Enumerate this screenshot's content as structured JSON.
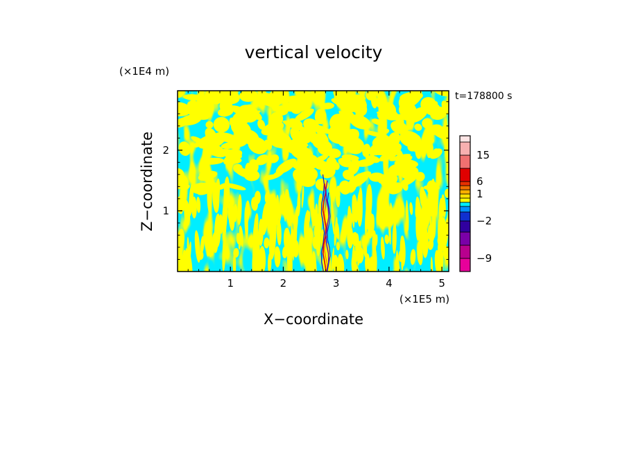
{
  "chart_data": {
    "type": "heatmap",
    "title": "vertical velocity",
    "xlabel": "X−coordinate",
    "ylabel": "Z−coordinate",
    "x_unit": "(×1E5 m)",
    "y_unit": "(×1E4 m)",
    "time_label": "t=178800 s",
    "xlim": [
      0,
      5.13
    ],
    "ylim": [
      0,
      2.98
    ],
    "x_ticks": [
      {
        "value": 1,
        "label": "1"
      },
      {
        "value": 2,
        "label": "2"
      },
      {
        "value": 3,
        "label": "3"
      },
      {
        "value": 4,
        "label": "4"
      },
      {
        "value": 5,
        "label": "5"
      }
    ],
    "y_ticks": [
      {
        "value": 1,
        "label": "1"
      },
      {
        "value": 2,
        "label": "2"
      }
    ],
    "background_value_color": "#00eeff",
    "positive_value_color": "#ffff00",
    "colorbar": {
      "levels": [
        -12,
        -9,
        -6,
        -4,
        -2,
        -1,
        -0.5,
        0,
        0.5,
        1,
        2,
        4,
        6,
        10,
        15,
        20,
        30
      ],
      "colors": [
        "#e8009a",
        "#b8008e",
        "#7a00a8",
        "#3000a0",
        "#1030d0",
        "#0090ff",
        "#00eeff",
        "#ffff00",
        "#ffe000",
        "#ffb000",
        "#f07000",
        "#e83000",
        "#e00000",
        "#f07070",
        "#f8b0b0",
        "#fde4e4"
      ],
      "labels": [
        {
          "value": -9,
          "label": "−9"
        },
        {
          "value": -2,
          "label": "−2"
        },
        {
          "value": 1,
          "label": "1"
        },
        {
          "value": 6,
          "label": "6"
        },
        {
          "value": 15,
          "label": "15"
        }
      ]
    },
    "grid": false,
    "legend": "right"
  }
}
